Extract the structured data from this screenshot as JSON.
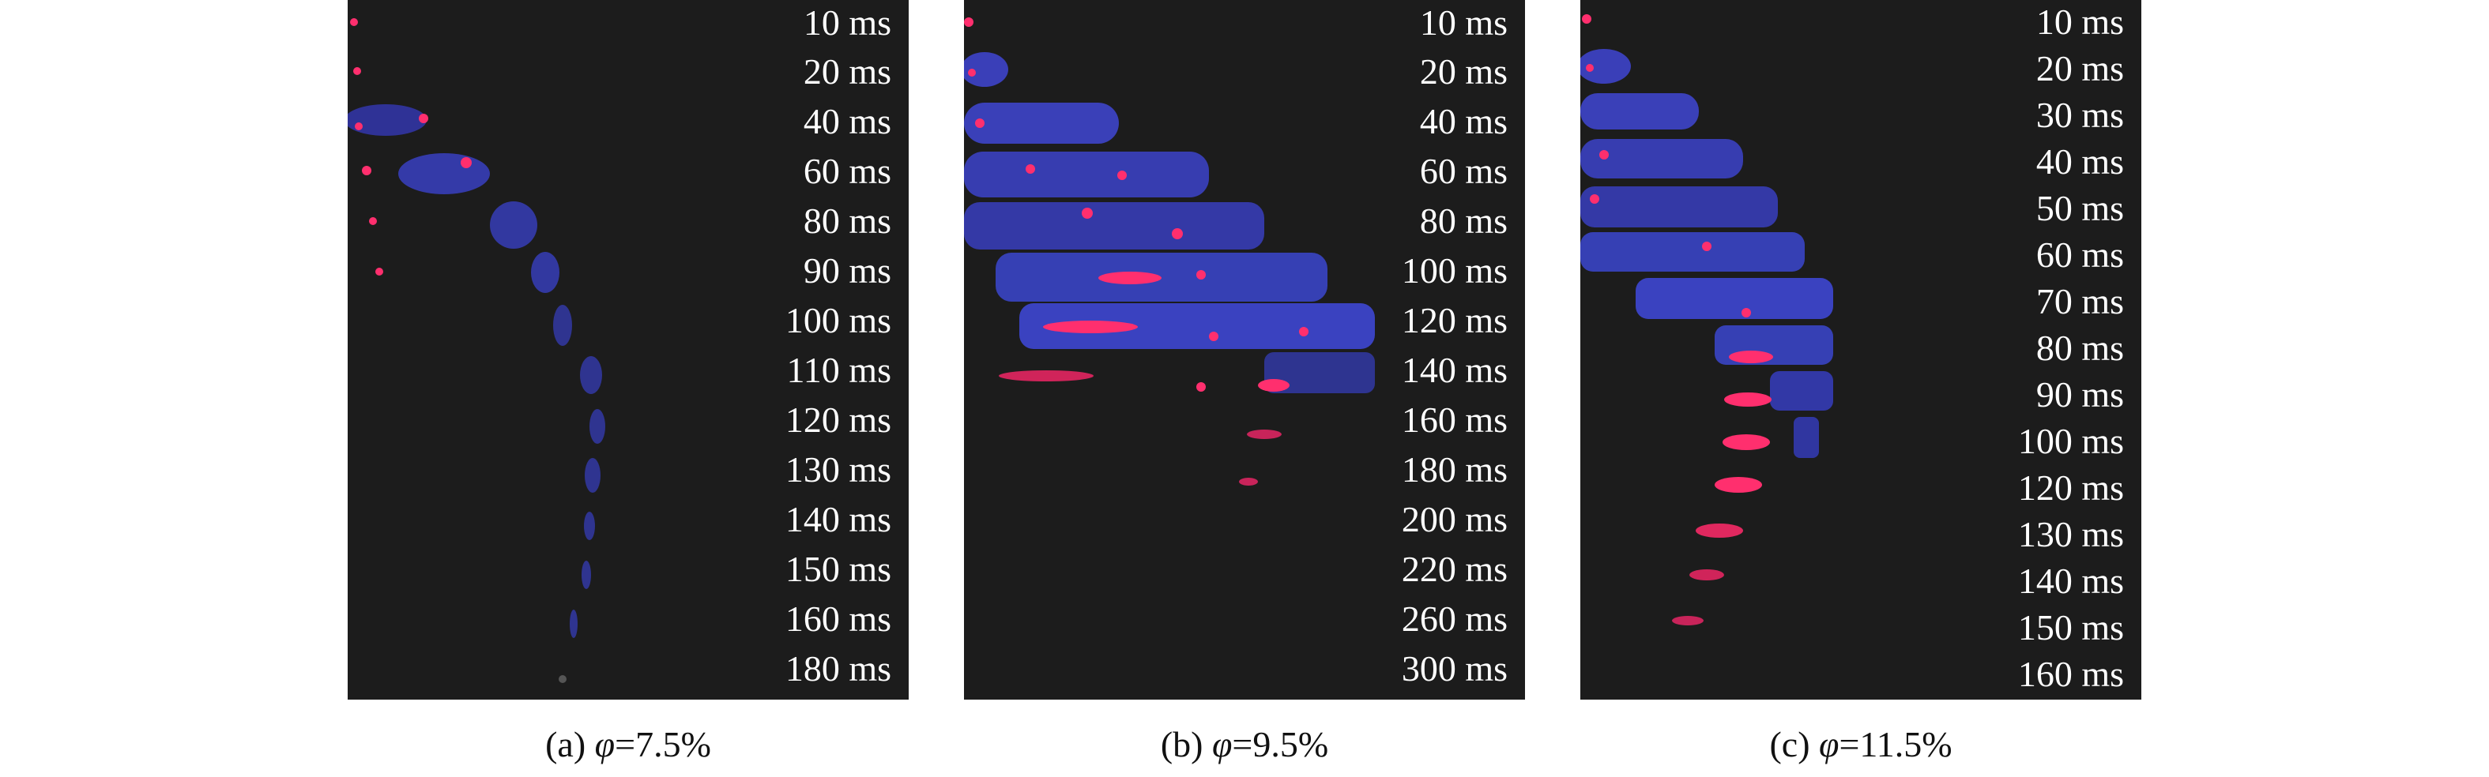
{
  "panels": [
    {
      "id": "a",
      "caption_prefix": "(a) ",
      "caption_symbol": "φ",
      "caption_value": "=7.5%",
      "time_labels": [
        "10 ms",
        "20 ms",
        "40 ms",
        "60 ms",
        "80 ms",
        "90 ms",
        "100 ms",
        "110 ms",
        "120 ms",
        "130 ms",
        "140 ms",
        "150 ms",
        "160 ms",
        "180 ms"
      ]
    },
    {
      "id": "b",
      "caption_prefix": "(b) ",
      "caption_symbol": "φ",
      "caption_value": "=9.5%",
      "time_labels": [
        "10 ms",
        "20 ms",
        "40 ms",
        "60 ms",
        "80 ms",
        "100 ms",
        "120 ms",
        "140 ms",
        "160 ms",
        "180 ms",
        "200 ms",
        "220 ms",
        "260 ms",
        "300 ms"
      ]
    },
    {
      "id": "c",
      "caption_prefix": "(c) ",
      "caption_symbol": "φ",
      "caption_value": "=11.5%",
      "time_labels": [
        "10 ms",
        "20 ms",
        "30 ms",
        "40 ms",
        "50 ms",
        "60 ms",
        "70 ms",
        "80 ms",
        "90 ms",
        "100 ms",
        "120 ms",
        "130 ms",
        "140 ms",
        "150 ms",
        "160 ms"
      ]
    }
  ],
  "colors": {
    "background": "#1c1c1c",
    "bubble_blue": "#3a3fb8",
    "bubble_edge": "#5a66ff",
    "hot_spot": "#ff2f6e",
    "label_text": "#ffffff"
  }
}
